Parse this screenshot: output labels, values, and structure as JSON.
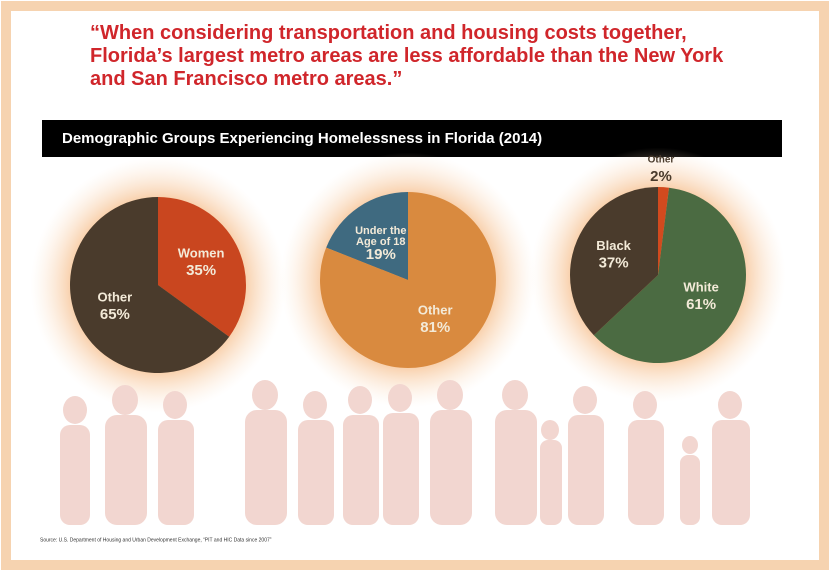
{
  "quote": "“When considering transportation and housing costs together, Florida’s largest metro areas are less affordable than the New York and San Francisco metro areas.”",
  "title": "Demographic Groups Experiencing Homelessness in Florida (2014)",
  "source": "Source: U.S. Department of Housing and Urban Development Exchange, “PIT and HIC Data since 2007”",
  "chart_data": [
    {
      "type": "pie",
      "categories": [
        "Women",
        "Other"
      ],
      "values": [
        35,
        65
      ],
      "value_labels": [
        "35%",
        "65%"
      ],
      "colors": [
        "#c9461f",
        "#4a3b2c"
      ]
    },
    {
      "type": "pie",
      "categories": [
        "Under the Age of 18",
        "Other"
      ],
      "values": [
        19,
        81
      ],
      "value_labels": [
        "19%",
        "81%"
      ],
      "colors": [
        "#3f6a80",
        "#d98a3f"
      ],
      "counterclock": true
    },
    {
      "type": "pie",
      "categories": [
        "Other",
        "White",
        "Black"
      ],
      "values": [
        2,
        61,
        37
      ],
      "value_labels": [
        "2%",
        "61%",
        "37%"
      ],
      "colors": [
        "#d24a1e",
        "#4b6b42",
        "#4a3b2c"
      ]
    }
  ]
}
